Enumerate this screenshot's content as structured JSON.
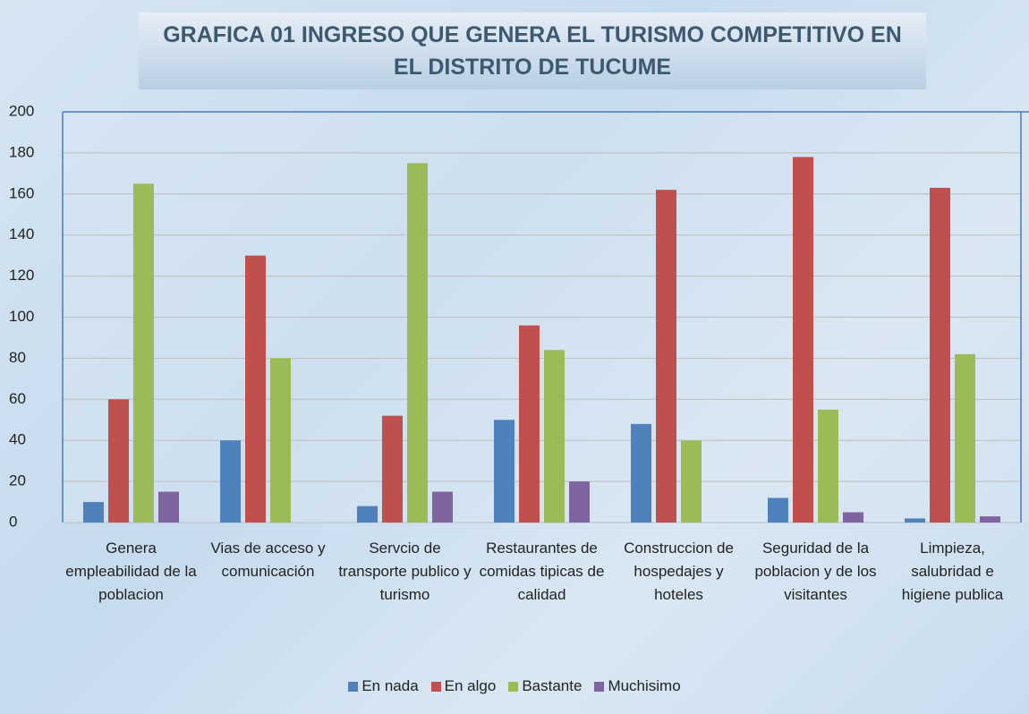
{
  "chart_data": {
    "type": "bar",
    "title": "GRAFICA 01 INGRESO QUE  GENERA EL TURISMO  COMPETITIVO EN EL DISTRITO DE TUCUME",
    "categories": [
      "Genera empleabilidad de la poblacion",
      "Vias  de acceso y comunicación",
      "Servcio de transporte publico y turismo",
      "Restaurantes de comidas tipicas de calidad",
      "Construccion de hospedajes y hoteles",
      "Seguridad  de la poblacion y de los visitantes",
      "Limpieza, salubridad e higiene publica"
    ],
    "series": [
      {
        "name": "En nada",
        "color": "#4f81bd",
        "values": [
          10,
          40,
          8,
          50,
          48,
          12,
          2
        ]
      },
      {
        "name": "En algo",
        "color": "#c0504d",
        "values": [
          60,
          130,
          52,
          96,
          162,
          178,
          163
        ]
      },
      {
        "name": "Bastante",
        "color": "#9bbb59",
        "values": [
          165,
          80,
          175,
          84,
          40,
          55,
          82
        ]
      },
      {
        "name": "Muchisimo",
        "color": "#8064a2",
        "values": [
          15,
          0,
          15,
          20,
          0,
          5,
          3
        ]
      }
    ],
    "ylim": [
      0,
      200
    ],
    "yticks": [
      0,
      20,
      40,
      60,
      80,
      100,
      120,
      140,
      160,
      180,
      200
    ],
    "grid": true
  }
}
